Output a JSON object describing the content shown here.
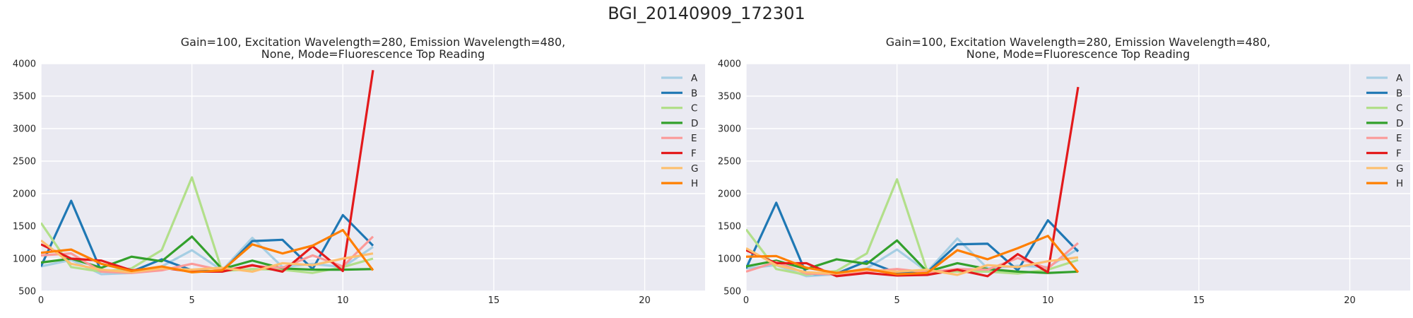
{
  "figure": {
    "title": "BGI_20140909_172301"
  },
  "chart_data": [
    {
      "type": "line",
      "title_lines": [
        "Gain=100, Excitation Wavelength=280, Emission Wavelength=480,",
        "None, Mode=Fluorescence Top Reading"
      ],
      "xlabel": "",
      "ylabel": "",
      "xlim": [
        0,
        22
      ],
      "ylim": [
        500,
        4000
      ],
      "xticks": [
        0,
        5,
        10,
        15,
        20
      ],
      "yticks": [
        500,
        1000,
        1500,
        2000,
        2500,
        3000,
        3500,
        4000
      ],
      "grid": true,
      "legend_position": "upper-right",
      "x": [
        0,
        1,
        2,
        3,
        4,
        5,
        6,
        7,
        8,
        9,
        10,
        11
      ],
      "series": [
        {
          "name": "A",
          "color": "#a6cee3",
          "values": [
            880,
            980,
            760,
            780,
            880,
            1130,
            820,
            1320,
            870,
            920,
            870,
            1180
          ]
        },
        {
          "name": "B",
          "color": "#1f78b4",
          "values": [
            880,
            1890,
            800,
            800,
            990,
            820,
            800,
            1270,
            1290,
            840,
            1670,
            1200
          ]
        },
        {
          "name": "C",
          "color": "#b2df8a",
          "values": [
            1550,
            870,
            800,
            850,
            1130,
            2250,
            810,
            840,
            830,
            780,
            870,
            1000
          ]
        },
        {
          "name": "D",
          "color": "#33a02c",
          "values": [
            940,
            1000,
            860,
            1030,
            960,
            1340,
            840,
            970,
            850,
            830,
            830,
            840
          ]
        },
        {
          "name": "E",
          "color": "#fb9a99",
          "values": [
            1050,
            1080,
            800,
            780,
            820,
            920,
            820,
            890,
            860,
            1050,
            880,
            1340
          ]
        },
        {
          "name": "F",
          "color": "#e31a1c",
          "values": [
            1220,
            1000,
            970,
            820,
            860,
            800,
            800,
            900,
            800,
            1190,
            810,
            3900
          ]
        },
        {
          "name": "G",
          "color": "#fdbf6f",
          "values": [
            1280,
            920,
            830,
            790,
            850,
            830,
            860,
            800,
            930,
            900,
            1000,
            1080
          ]
        },
        {
          "name": "H",
          "color": "#ff7f00",
          "values": [
            1090,
            1140,
            920,
            810,
            880,
            790,
            820,
            1220,
            1080,
            1200,
            1440,
            820
          ]
        }
      ]
    },
    {
      "type": "line",
      "title_lines": [
        "Gain=100, Excitation Wavelength=280, Emission Wavelength=480,",
        "None, Mode=Fluorescence Top Reading"
      ],
      "xlabel": "",
      "ylabel": "",
      "xlim": [
        0,
        22
      ],
      "ylim": [
        500,
        4000
      ],
      "xticks": [
        0,
        5,
        10,
        15,
        20
      ],
      "yticks": [
        500,
        1000,
        1500,
        2000,
        2500,
        3000,
        3500,
        4000
      ],
      "grid": true,
      "legend_position": "upper-right",
      "x": [
        0,
        1,
        2,
        3,
        4,
        5,
        6,
        7,
        8,
        9,
        10,
        11
      ],
      "series": [
        {
          "name": "A",
          "color": "#a6cee3",
          "values": [
            850,
            900,
            730,
            760,
            850,
            1140,
            800,
            1310,
            850,
            890,
            870,
            1150
          ]
        },
        {
          "name": "B",
          "color": "#1f78b4",
          "values": [
            850,
            1860,
            760,
            770,
            960,
            780,
            790,
            1220,
            1230,
            820,
            1590,
            1110
          ]
        },
        {
          "name": "C",
          "color": "#b2df8a",
          "values": [
            1450,
            840,
            750,
            810,
            1080,
            2220,
            810,
            800,
            800,
            770,
            830,
            980
          ]
        },
        {
          "name": "D",
          "color": "#33a02c",
          "values": [
            880,
            970,
            840,
            990,
            920,
            1280,
            800,
            930,
            840,
            800,
            780,
            800
          ]
        },
        {
          "name": "E",
          "color": "#fb9a99",
          "values": [
            800,
            950,
            770,
            760,
            800,
            840,
            790,
            840,
            830,
            1010,
            850,
            1240
          ]
        },
        {
          "name": "F",
          "color": "#e31a1c",
          "values": [
            1130,
            930,
            930,
            730,
            780,
            740,
            750,
            830,
            730,
            1070,
            790,
            3640
          ]
        },
        {
          "name": "G",
          "color": "#fdbf6f",
          "values": [
            1160,
            900,
            790,
            770,
            830,
            800,
            830,
            750,
            900,
            870,
            960,
            1020
          ]
        },
        {
          "name": "H",
          "color": "#ff7f00",
          "values": [
            1030,
            1040,
            860,
            780,
            840,
            760,
            780,
            1130,
            990,
            1160,
            1350,
            790
          ]
        }
      ]
    }
  ]
}
